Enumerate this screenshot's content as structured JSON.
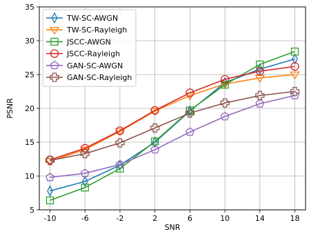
{
  "chart_data": {
    "type": "line",
    "title": "",
    "xlabel": "SNR",
    "ylabel": "PSNR",
    "x": [
      -10,
      -6,
      -2,
      2,
      6,
      10,
      14,
      18
    ],
    "xlim": [
      -10,
      18
    ],
    "ylim": [
      5,
      35
    ],
    "yticks": [
      5,
      10,
      15,
      20,
      25,
      30,
      35
    ],
    "grid": true,
    "legend_position": "upper-left",
    "series": [
      {
        "name": "TW-SC-AWGN",
        "color": "#1f77b4",
        "marker": "thin_diamond",
        "values": [
          7.8,
          9.2,
          11.6,
          15.0,
          19.6,
          23.8,
          25.8,
          27.3
        ]
      },
      {
        "name": "TW-SC-Rayleigh",
        "color": "#ff7f0e",
        "marker": "triangle_down",
        "values": [
          12.2,
          13.9,
          16.6,
          19.6,
          21.9,
          23.6,
          24.5,
          25.0
        ]
      },
      {
        "name": "JSCC-AWGN",
        "color": "#2ca02c",
        "marker": "square",
        "values": [
          6.4,
          8.3,
          11.1,
          15.1,
          19.7,
          23.5,
          26.5,
          28.4
        ]
      },
      {
        "name": "JSCC-Rayleigh",
        "color": "#d62728",
        "marker": "circle",
        "values": [
          12.4,
          14.1,
          16.7,
          19.7,
          22.3,
          24.3,
          25.5,
          26.2
        ]
      },
      {
        "name": "GAN-SC-AWGN",
        "color": "#9467bd",
        "marker": "pentagon",
        "values": [
          9.8,
          10.4,
          11.7,
          13.9,
          16.5,
          18.8,
          20.7,
          21.9
        ]
      },
      {
        "name": "GAN-SC-Rayleigh",
        "color": "#8c564b",
        "marker": "plus",
        "values": [
          12.3,
          13.3,
          14.9,
          17.1,
          19.3,
          20.8,
          21.9,
          22.5
        ]
      }
    ]
  }
}
